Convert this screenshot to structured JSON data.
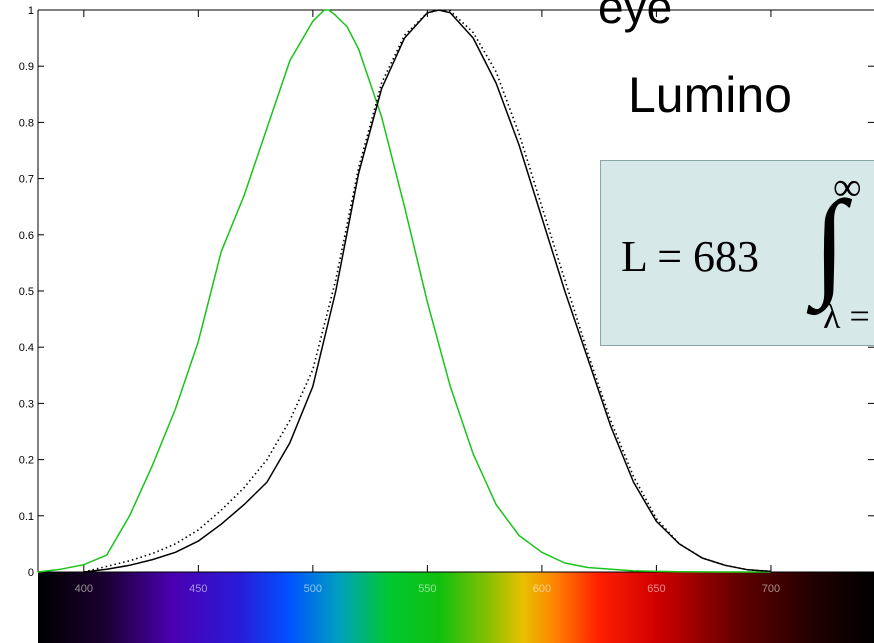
{
  "slide": {
    "title_fragment": "eye",
    "heading_fragment": "Lumino"
  },
  "formula": {
    "lhs": "L = 683",
    "upper_limit": "∞",
    "lower_limit": "λ ="
  },
  "colors": {
    "green_curve": "#19c419",
    "black_curve": "#000000",
    "formula_box_bg": "#d6e8e8"
  },
  "chart_data": {
    "type": "line",
    "x_ticks": [
      "400",
      "450",
      "500",
      "550",
      "600",
      "650",
      "700"
    ],
    "y_ticks": [
      "0",
      "0.1",
      "0.2",
      "0.3",
      "0.4",
      "0.5",
      "0.6",
      "0.7",
      "0.8",
      "0.9",
      "1"
    ],
    "xlim": [
      380,
      745
    ],
    "ylim": [
      0,
      1
    ],
    "spectrum_bar": true,
    "series": [
      {
        "color": "#19c419",
        "style": "solid",
        "x": [
          380,
          390,
          400,
          410,
          420,
          430,
          440,
          450,
          460,
          470,
          480,
          490,
          500,
          505,
          507,
          510,
          515,
          520,
          530,
          540,
          550,
          560,
          570,
          580,
          590,
          600,
          610,
          620,
          640,
          660,
          680,
          700
        ],
        "y": [
          0.0,
          0.005,
          0.013,
          0.03,
          0.1,
          0.19,
          0.29,
          0.41,
          0.57,
          0.67,
          0.79,
          0.91,
          0.98,
          1.0,
          1.0,
          0.99,
          0.97,
          0.93,
          0.81,
          0.65,
          0.48,
          0.33,
          0.21,
          0.12,
          0.065,
          0.035,
          0.016,
          0.008,
          0.002,
          0.0005,
          0.0,
          0.0
        ]
      },
      {
        "color": "#000000",
        "style": "solid",
        "x": [
          400,
          410,
          420,
          430,
          440,
          450,
          460,
          470,
          480,
          490,
          500,
          510,
          520,
          530,
          540,
          550,
          555,
          560,
          570,
          580,
          590,
          600,
          610,
          620,
          630,
          640,
          650,
          660,
          670,
          680,
          690,
          700
        ],
        "y": [
          0.0,
          0.005,
          0.012,
          0.022,
          0.035,
          0.055,
          0.085,
          0.12,
          0.16,
          0.23,
          0.33,
          0.5,
          0.71,
          0.86,
          0.95,
          0.995,
          1.0,
          0.995,
          0.95,
          0.87,
          0.76,
          0.63,
          0.5,
          0.38,
          0.26,
          0.16,
          0.09,
          0.05,
          0.025,
          0.012,
          0.004,
          0.001
        ]
      },
      {
        "color": "#000000",
        "style": "dotted",
        "x": [
          400,
          410,
          420,
          430,
          440,
          450,
          460,
          470,
          480,
          490,
          500,
          510,
          520,
          530,
          540,
          550,
          555,
          560,
          570,
          580,
          590,
          600,
          610,
          620,
          630,
          640,
          650,
          660,
          670,
          680,
          690,
          700
        ],
        "y": [
          0.0,
          0.01,
          0.02,
          0.033,
          0.05,
          0.075,
          0.11,
          0.15,
          0.2,
          0.27,
          0.36,
          0.52,
          0.72,
          0.87,
          0.955,
          0.995,
          1.0,
          0.998,
          0.96,
          0.89,
          0.78,
          0.65,
          0.52,
          0.39,
          0.27,
          0.17,
          0.095,
          0.05,
          0.025,
          0.012,
          0.004,
          0.001
        ]
      }
    ]
  }
}
